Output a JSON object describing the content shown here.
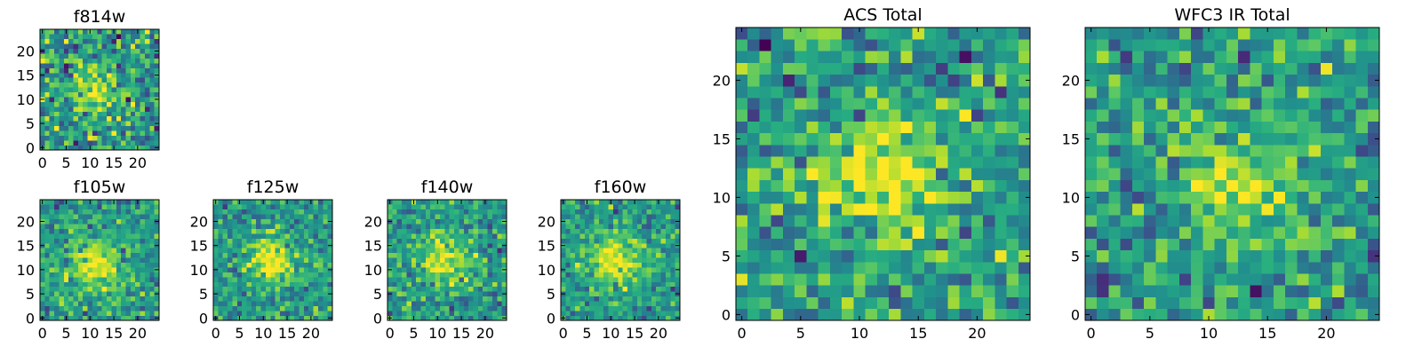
{
  "chart_data": [
    {
      "type": "heatmap",
      "title": "f814w",
      "colormap": "viridis",
      "xlim": [
        -0.5,
        24.5
      ],
      "ylim": [
        -0.5,
        24.5
      ],
      "xticks": [
        0,
        5,
        10,
        15,
        20
      ],
      "yticks": [
        0,
        5,
        10,
        15,
        20
      ],
      "grid": false,
      "peak": [
        11,
        12
      ],
      "peak_width": 3.0,
      "noise": 0.42,
      "seed": 11
    },
    {
      "type": "heatmap",
      "title": "f105w",
      "colormap": "viridis",
      "xlim": [
        -0.5,
        24.5
      ],
      "ylim": [
        -0.5,
        24.5
      ],
      "xticks": [
        0,
        5,
        10,
        15,
        20
      ],
      "yticks": [
        0,
        5,
        10,
        15,
        20
      ],
      "grid": false,
      "peak": [
        11,
        11
      ],
      "peak_width": 3.6,
      "noise": 0.3,
      "seed": 23
    },
    {
      "type": "heatmap",
      "title": "f125w",
      "colormap": "viridis",
      "xlim": [
        -0.5,
        24.5
      ],
      "ylim": [
        -0.5,
        24.5
      ],
      "xticks": [
        0,
        5,
        10,
        15,
        20
      ],
      "yticks": [
        0,
        5,
        10,
        15,
        20
      ],
      "grid": false,
      "peak": [
        12,
        12
      ],
      "peak_width": 3.4,
      "noise": 0.3,
      "seed": 37
    },
    {
      "type": "heatmap",
      "title": "f140w",
      "colormap": "viridis",
      "xlim": [
        -0.5,
        24.5
      ],
      "ylim": [
        -0.5,
        24.5
      ],
      "xticks": [
        0,
        5,
        10,
        15,
        20
      ],
      "yticks": [
        0,
        5,
        10,
        15,
        20
      ],
      "grid": false,
      "peak": [
        12,
        12
      ],
      "peak_width": 3.4,
      "noise": 0.33,
      "seed": 41
    },
    {
      "type": "heatmap",
      "title": "f160w",
      "colormap": "viridis",
      "xlim": [
        -0.5,
        24.5
      ],
      "ylim": [
        -0.5,
        24.5
      ],
      "xticks": [
        0,
        5,
        10,
        15,
        20
      ],
      "yticks": [
        0,
        5,
        10,
        15,
        20
      ],
      "grid": false,
      "peak": [
        11,
        12
      ],
      "peak_width": 3.8,
      "noise": 0.3,
      "seed": 53
    },
    {
      "type": "heatmap",
      "title": "ACS Total",
      "colormap": "viridis",
      "xlim": [
        -0.5,
        24.5
      ],
      "ylim": [
        -0.5,
        24.5
      ],
      "xticks": [
        0,
        5,
        10,
        15,
        20
      ],
      "yticks": [
        0,
        5,
        10,
        15,
        20
      ],
      "grid": false,
      "peak": [
        12,
        12
      ],
      "peak_width": 3.2,
      "noise": 0.36,
      "seed": 67
    },
    {
      "type": "heatmap",
      "title": "WFC3 IR Total",
      "colormap": "viridis",
      "xlim": [
        -0.5,
        24.5
      ],
      "ylim": [
        -0.5,
        24.5
      ],
      "xticks": [
        0,
        5,
        10,
        15,
        20
      ],
      "yticks": [
        0,
        5,
        10,
        15,
        20
      ],
      "grid": false,
      "peak": [
        12,
        11
      ],
      "peak_width": 3.0,
      "noise": 0.36,
      "seed": 79
    }
  ]
}
